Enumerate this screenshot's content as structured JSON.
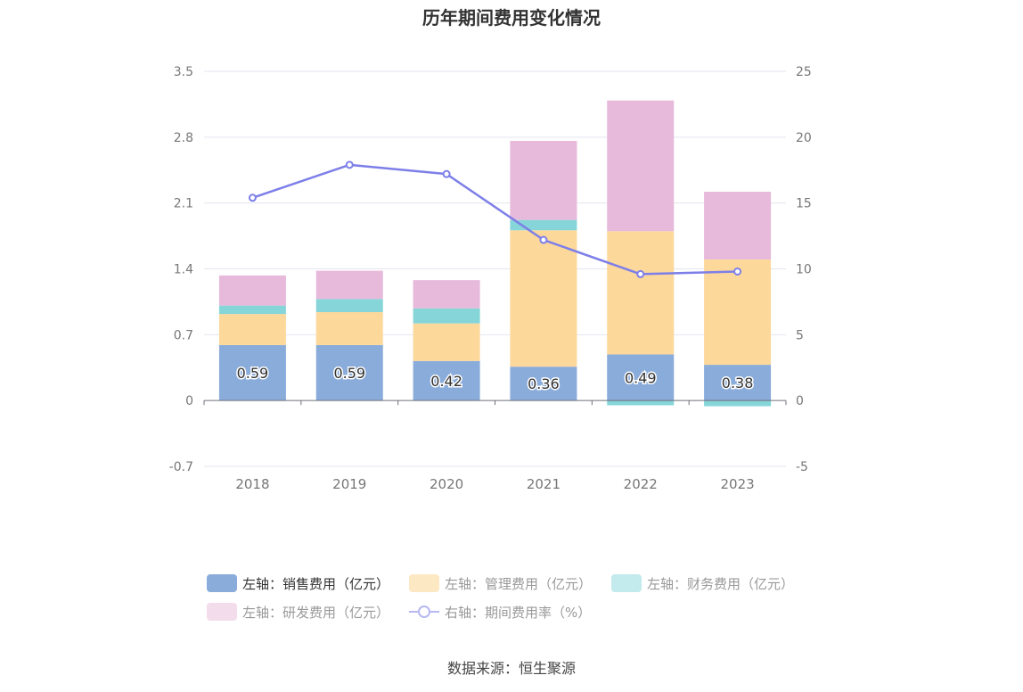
{
  "chart_data": {
    "type": "bar",
    "title": "历年期间费用变化情况",
    "categories": [
      "2018",
      "2019",
      "2020",
      "2021",
      "2022",
      "2023"
    ],
    "stacked": true,
    "left_axis": {
      "min": -0.7,
      "max": 3.5,
      "ticks": [
        "-0.7",
        "0",
        "0.7",
        "1.4",
        "2.1",
        "2.8",
        "3.5"
      ]
    },
    "right_axis": {
      "min": -5,
      "max": 25,
      "ticks": [
        "-5",
        "0",
        "5",
        "10",
        "15",
        "20",
        "25"
      ]
    },
    "grid": true,
    "legend_position": "bottom",
    "series": [
      {
        "name": "左轴：销售费用（亿元）",
        "axis": "left",
        "type": "bar",
        "color": "#8aacdb",
        "values": [
          0.59,
          0.59,
          0.42,
          0.36,
          0.49,
          0.38
        ],
        "data_labels": [
          "0.59",
          "0.59",
          "0.42",
          "0.36",
          "0.49",
          "0.38"
        ]
      },
      {
        "name": "左轴：管理费用（亿元）",
        "axis": "left",
        "type": "bar",
        "color": "#fdd89b",
        "values": [
          0.33,
          0.35,
          0.4,
          1.45,
          1.31,
          1.12
        ]
      },
      {
        "name": "左轴：财务费用（亿元）",
        "axis": "left",
        "type": "bar",
        "color": "#86d5d8",
        "values": [
          0.09,
          0.14,
          0.16,
          0.11,
          -0.05,
          -0.06
        ]
      },
      {
        "name": "左轴：研发费用（亿元）",
        "axis": "left",
        "type": "bar",
        "color": "#e7b9da",
        "values": [
          0.32,
          0.3,
          0.3,
          0.84,
          1.39,
          0.72
        ]
      },
      {
        "name": "右轴：期间费用率（%）",
        "axis": "right",
        "type": "line",
        "color": "#7d7fe8",
        "values": [
          15.4,
          17.9,
          17.2,
          12.2,
          9.6,
          9.8
        ]
      }
    ]
  },
  "legend": {
    "item1": "左轴：销售费用（亿元）",
    "item2": "左轴：管理费用（亿元）",
    "item3": "左轴：财务费用（亿元）",
    "item4": "左轴：研发费用（亿元）",
    "item5": "右轴：期间费用率（%）",
    "line_icon": "line-circle-marker-icon"
  },
  "source": "数据来源：恒生聚源"
}
